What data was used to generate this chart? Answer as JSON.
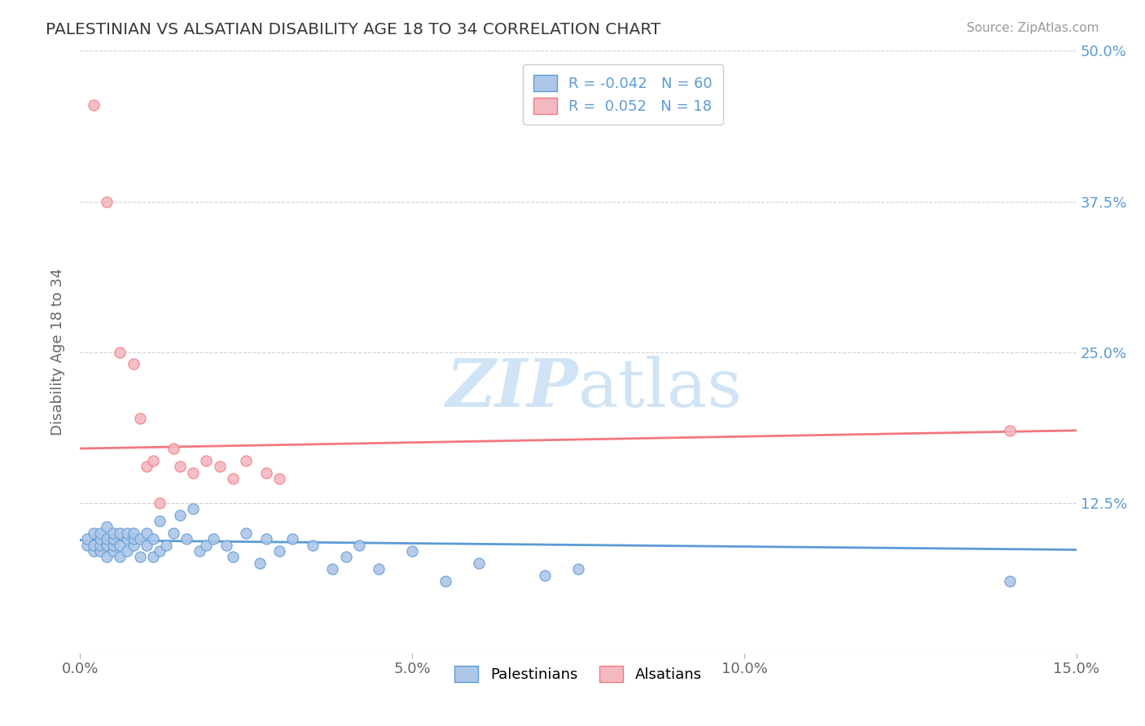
{
  "title": "PALESTINIAN VS ALSATIAN DISABILITY AGE 18 TO 34 CORRELATION CHART",
  "source": "Source: ZipAtlas.com",
  "ylabel": "Disability Age 18 to 34",
  "xlim": [
    0.0,
    0.15
  ],
  "ylim": [
    0.0,
    0.5
  ],
  "xticks": [
    0.0,
    0.05,
    0.1,
    0.15
  ],
  "xtick_labels": [
    "0.0%",
    "5.0%",
    "10.0%",
    "15.0%"
  ],
  "yticks": [
    0.0,
    0.125,
    0.25,
    0.375,
    0.5
  ],
  "ytick_labels": [
    "",
    "12.5%",
    "25.0%",
    "37.5%",
    "50.0%"
  ],
  "blue_R": -0.042,
  "blue_N": 60,
  "pink_R": 0.052,
  "pink_N": 18,
  "blue_color": "#aec6e8",
  "pink_color": "#f4b8c1",
  "blue_line_color": "#5b9bd5",
  "pink_line_color": "#f4777f",
  "watermark_color": "#d0e4f5",
  "background_color": "#ffffff",
  "blue_scatter_x": [
    0.001,
    0.001,
    0.002,
    0.002,
    0.002,
    0.003,
    0.003,
    0.003,
    0.003,
    0.004,
    0.004,
    0.004,
    0.004,
    0.005,
    0.005,
    0.005,
    0.005,
    0.006,
    0.006,
    0.006,
    0.007,
    0.007,
    0.007,
    0.008,
    0.008,
    0.008,
    0.009,
    0.009,
    0.01,
    0.01,
    0.011,
    0.011,
    0.012,
    0.012,
    0.013,
    0.014,
    0.015,
    0.016,
    0.017,
    0.018,
    0.019,
    0.02,
    0.022,
    0.023,
    0.025,
    0.027,
    0.028,
    0.03,
    0.032,
    0.035,
    0.038,
    0.04,
    0.042,
    0.045,
    0.05,
    0.055,
    0.06,
    0.07,
    0.075,
    0.14
  ],
  "blue_scatter_y": [
    0.09,
    0.095,
    0.085,
    0.09,
    0.1,
    0.085,
    0.09,
    0.095,
    0.1,
    0.08,
    0.09,
    0.095,
    0.105,
    0.085,
    0.09,
    0.095,
    0.1,
    0.08,
    0.09,
    0.1,
    0.085,
    0.095,
    0.1,
    0.09,
    0.095,
    0.1,
    0.08,
    0.095,
    0.09,
    0.1,
    0.08,
    0.095,
    0.085,
    0.11,
    0.09,
    0.1,
    0.115,
    0.095,
    0.12,
    0.085,
    0.09,
    0.095,
    0.09,
    0.08,
    0.1,
    0.075,
    0.095,
    0.085,
    0.095,
    0.09,
    0.07,
    0.08,
    0.09,
    0.07,
    0.085,
    0.06,
    0.075,
    0.065,
    0.07,
    0.06
  ],
  "pink_scatter_x": [
    0.002,
    0.004,
    0.006,
    0.008,
    0.009,
    0.01,
    0.011,
    0.012,
    0.014,
    0.015,
    0.017,
    0.019,
    0.021,
    0.023,
    0.025,
    0.028,
    0.03,
    0.14
  ],
  "pink_scatter_y": [
    0.455,
    0.375,
    0.25,
    0.24,
    0.195,
    0.155,
    0.16,
    0.125,
    0.17,
    0.155,
    0.15,
    0.16,
    0.155,
    0.145,
    0.16,
    0.15,
    0.145,
    0.185
  ],
  "blue_line_y_at_0": 0.094,
  "blue_line_y_at_015": 0.086,
  "pink_line_y_at_0": 0.17,
  "pink_line_y_at_015": 0.185
}
